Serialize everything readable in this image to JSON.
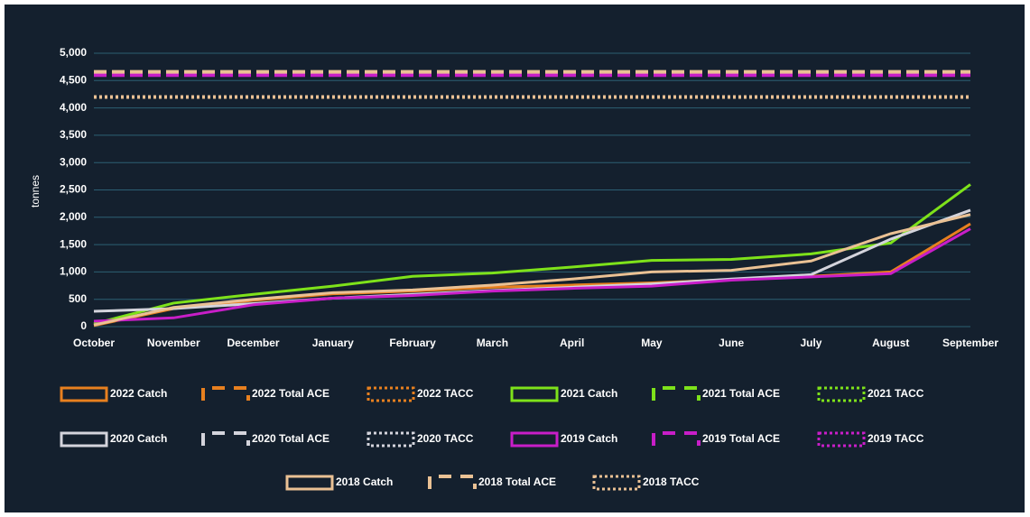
{
  "chart_data": {
    "type": "line",
    "y_label": "tonnes",
    "categories": [
      "October",
      "November",
      "December",
      "January",
      "February",
      "March",
      "April",
      "May",
      "June",
      "July",
      "August",
      "September"
    ],
    "ylim": [
      0,
      5000
    ],
    "yticks": [
      0,
      500,
      {
        "value": 1000,
        "label": "1,000"
      },
      {
        "value": 1500,
        "label": "1,500"
      },
      {
        "value": 2000,
        "label": "2,000"
      },
      {
        "value": 2500,
        "label": "2,500"
      },
      {
        "value": 3000,
        "label": "3,000"
      },
      {
        "value": 3500,
        "label": "3,500"
      },
      {
        "value": 4000,
        "label": "4,000"
      },
      {
        "value": 4500,
        "label": "4,500"
      },
      {
        "value": 5000,
        "label": "5,000"
      }
    ],
    "grid": true,
    "legend": "bottom",
    "series": [
      {
        "name": "2022 Catch",
        "color": "#e8801f",
        "style": "solid",
        "values": [
          20,
          330,
          480,
          600,
          650,
          720,
          760,
          800,
          860,
          920,
          1000,
          1880
        ]
      },
      {
        "name": "2022 Total ACE",
        "color": "#e8801f",
        "style": "dashed",
        "values": [
          4620,
          4620,
          4620,
          4620,
          4620,
          4620,
          4620,
          4620,
          4620,
          4620,
          4620,
          4620
        ]
      },
      {
        "name": "2022 TACC",
        "color": "#e8801f",
        "style": "dotted",
        "values": [
          4200,
          4200,
          4200,
          4200,
          4200,
          4200,
          4200,
          4200,
          4200,
          4200,
          4200,
          4200
        ]
      },
      {
        "name": "2021 Catch",
        "color": "#7ee21a",
        "style": "solid",
        "values": [
          50,
          430,
          590,
          740,
          920,
          980,
          1090,
          1210,
          1230,
          1330,
          1530,
          2600
        ]
      },
      {
        "name": "2021 Total ACE",
        "color": "#7ee21a",
        "style": "dashed",
        "values": [
          4620,
          4620,
          4620,
          4620,
          4620,
          4620,
          4620,
          4620,
          4620,
          4620,
          4620,
          4620
        ]
      },
      {
        "name": "2021 TACC",
        "color": "#7ee21a",
        "style": "dotted",
        "values": [
          4200,
          4200,
          4200,
          4200,
          4200,
          4200,
          4200,
          4200,
          4200,
          4200,
          4200,
          4200
        ]
      },
      {
        "name": "2020 Catch",
        "color": "#d4d4dc",
        "style": "solid",
        "values": [
          280,
          330,
          420,
          520,
          590,
          660,
          720,
          780,
          870,
          950,
          1600,
          2130
        ]
      },
      {
        "name": "2020 Total ACE",
        "color": "#d4d4dc",
        "style": "dashed",
        "values": [
          4620,
          4620,
          4620,
          4620,
          4620,
          4620,
          4620,
          4620,
          4620,
          4620,
          4620,
          4620
        ]
      },
      {
        "name": "2020 TACC",
        "color": "#d4d4dc",
        "style": "dotted",
        "values": [
          4200,
          4200,
          4200,
          4200,
          4200,
          4200,
          4200,
          4200,
          4200,
          4200,
          4200,
          4200
        ]
      },
      {
        "name": "2019 Catch",
        "color": "#c81ec8",
        "style": "solid",
        "values": [
          100,
          160,
          400,
          520,
          570,
          650,
          700,
          740,
          850,
          910,
          970,
          1790
        ]
      },
      {
        "name": "2019 Total ACE",
        "color": "#c81ec8",
        "style": "dashed",
        "values": [
          4600,
          4600,
          4600,
          4600,
          4600,
          4600,
          4600,
          4600,
          4600,
          4600,
          4600,
          4600
        ]
      },
      {
        "name": "2019 TACC",
        "color": "#c81ec8",
        "style": "dotted",
        "values": [
          4200,
          4200,
          4200,
          4200,
          4200,
          4200,
          4200,
          4200,
          4200,
          4200,
          4200,
          4200
        ]
      },
      {
        "name": "2018 Catch",
        "color": "#eac194",
        "style": "solid",
        "values": [
          30,
          350,
          500,
          620,
          670,
          760,
          870,
          1000,
          1030,
          1200,
          1700,
          2050
        ]
      },
      {
        "name": "2018 Total ACE",
        "color": "#eac194",
        "style": "dashed",
        "values": [
          4660,
          4660,
          4660,
          4660,
          4660,
          4660,
          4660,
          4660,
          4660,
          4660,
          4660,
          4660
        ]
      },
      {
        "name": "2018 TACC",
        "color": "#eac194",
        "style": "dotted",
        "values": [
          4200,
          4200,
          4200,
          4200,
          4200,
          4200,
          4200,
          4200,
          4200,
          4200,
          4200,
          4200
        ]
      }
    ]
  }
}
